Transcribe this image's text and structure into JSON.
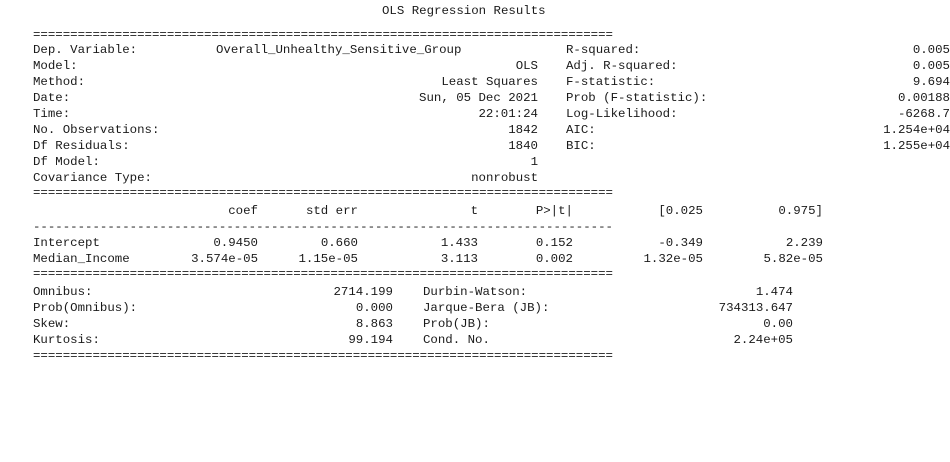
{
  "title": "OLS Regression Results",
  "rules": {
    "double": "==============================================================================",
    "single": "------------------------------------------------------------------------------"
  },
  "summary": {
    "left": [
      {
        "label": "Dep. Variable:",
        "value": "Overall_Unhealthy_Sensitive_Group"
      },
      {
        "label": "Model:",
        "value": "OLS"
      },
      {
        "label": "Method:",
        "value": "Least Squares"
      },
      {
        "label": "Date:",
        "value": "Sun, 05 Dec 2021"
      },
      {
        "label": "Time:",
        "value": "22:01:24"
      },
      {
        "label": "No. Observations:",
        "value": "1842"
      },
      {
        "label": "Df Residuals:",
        "value": "1840"
      },
      {
        "label": "Df Model:",
        "value": "1"
      },
      {
        "label": "Covariance Type:",
        "value": "nonrobust"
      }
    ],
    "right": [
      {
        "label": "R-squared:",
        "value": "0.005"
      },
      {
        "label": "Adj. R-squared:",
        "value": "0.005"
      },
      {
        "label": "F-statistic:",
        "value": "9.694"
      },
      {
        "label": "Prob (F-statistic):",
        "value": "0.00188"
      },
      {
        "label": "Log-Likelihood:",
        "value": "-6268.7"
      },
      {
        "label": "AIC:",
        "value": "1.254e+04"
      },
      {
        "label": "BIC:",
        "value": "1.255e+04"
      }
    ]
  },
  "coefficients": {
    "headers": [
      "coef",
      "std err",
      "t",
      "P>|t|",
      "[0.025",
      "0.975]"
    ],
    "rows": [
      {
        "name": "Intercept",
        "values": [
          "0.9450",
          "0.660",
          "1.433",
          "0.152",
          "-0.349",
          "2.239"
        ]
      },
      {
        "name": "Median_Income",
        "values": [
          "3.574e-05",
          "1.15e-05",
          "3.113",
          "0.002",
          "1.32e-05",
          "5.82e-05"
        ]
      }
    ]
  },
  "diagnostics": [
    {
      "l_label": "Omnibus:",
      "l_value": "2714.199",
      "r_label": "Durbin-Watson:",
      "r_value": "1.474"
    },
    {
      "l_label": "Prob(Omnibus):",
      "l_value": "0.000",
      "r_label": "Jarque-Bera (JB):",
      "r_value": "734313.647"
    },
    {
      "l_label": "Skew:",
      "l_value": "8.863",
      "r_label": "Prob(JB):",
      "r_value": "0.00"
    },
    {
      "l_label": "Kurtosis:",
      "l_value": "99.194",
      "r_label": "Cond. No.",
      "r_value": "2.24e+05"
    }
  ]
}
